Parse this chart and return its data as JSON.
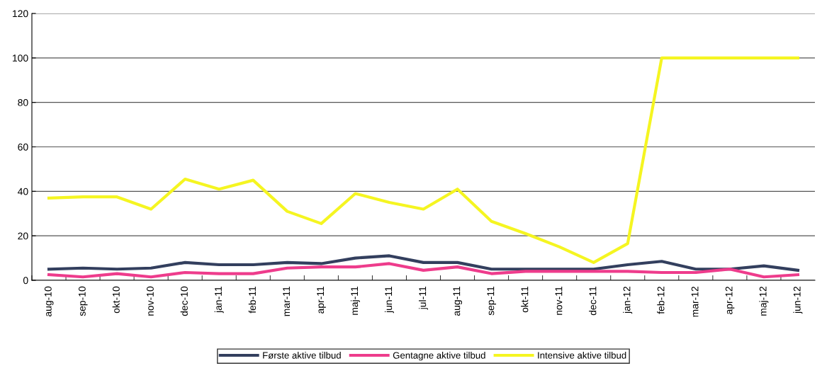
{
  "chart_data": {
    "type": "line",
    "categories": [
      "aug-10",
      "sep-10",
      "okt-10",
      "nov-10",
      "dec-10",
      "jan-11",
      "feb-11",
      "mar-11",
      "apr-11",
      "maj-11",
      "jun-11",
      "jul-11",
      "aug-11",
      "sep-11",
      "okt-11",
      "nov-11",
      "dec-11",
      "jan-12",
      "feb-12",
      "mar-12",
      "apr-12",
      "maj-12",
      "jun-12"
    ],
    "series": [
      {
        "name": "Første aktive tilbud",
        "color": "#333f5e",
        "values": [
          5,
          5.5,
          5,
          5.5,
          8,
          7,
          7,
          8,
          7.5,
          10,
          11,
          8,
          8,
          5,
          5,
          5,
          5,
          7,
          8.5,
          5,
          5,
          6.5,
          4.5
        ]
      },
      {
        "name": "Gentagne aktive tilbud",
        "color": "#ee3c8c",
        "values": [
          2.5,
          1.5,
          3,
          1.5,
          3.5,
          3,
          3,
          5.5,
          6,
          6,
          7.5,
          4.5,
          6,
          3,
          4,
          4,
          4,
          4,
          3.5,
          3.5,
          5,
          1.5,
          2.5
        ]
      },
      {
        "name": "Intensive aktive tilbud",
        "color": "#f5f521",
        "values": [
          37,
          37.5,
          37.5,
          32,
          45.5,
          41,
          45,
          31,
          25.5,
          39,
          35,
          32,
          41,
          26.5,
          21,
          15,
          8,
          16.5,
          100,
          100,
          100,
          100,
          100
        ]
      }
    ],
    "ylim": [
      0,
      120
    ],
    "yticks": [
      0,
      20,
      40,
      60,
      80,
      100,
      120
    ],
    "grid": "y",
    "legend": "bottom",
    "marker": "none",
    "line_style": "solid"
  }
}
